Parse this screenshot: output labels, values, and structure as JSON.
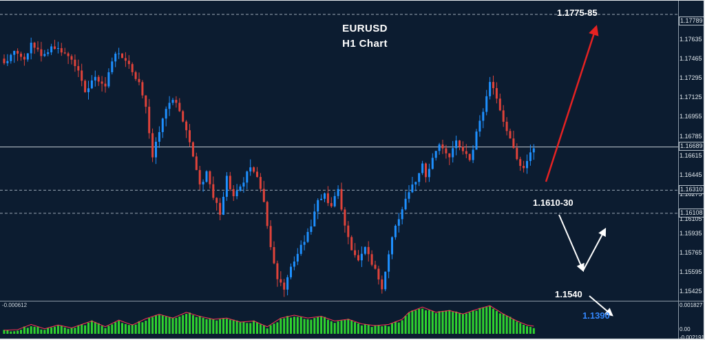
{
  "window": {
    "background": "#0c1c30",
    "frame_color": "#e8ecef",
    "separator_color": "#8c9aa6"
  },
  "chart": {
    "symbol": "EURUSD",
    "timeframe_label": "H1 Chart",
    "annotations": {
      "upper_zone": "1.1775-85",
      "mid_zone": "1.1610-30",
      "support": "1.1540",
      "target_down": "1.1390"
    }
  },
  "chart_data": {
    "type": "candlestick",
    "symbol": "EURUSD",
    "timeframe": "H1",
    "colors": {
      "up": "#1e90ff",
      "down": "#e0433a",
      "histogram": "#2fd32f",
      "signal_line": "#ff3355",
      "level_line": "#9aa8b5",
      "current_price_line": "#c4cdd4",
      "arrow_trend": "#e62222",
      "arrow_path": "#ffffff",
      "target_text": "#3388ff"
    },
    "price_axis": {
      "ticks": [
        "1.17635",
        "1.17465",
        "1.17295",
        "1.17125",
        "1.16955",
        "1.16785",
        "1.16615",
        "1.16445",
        "1.16275",
        "1.16105",
        "1.15935",
        "1.15765",
        "1.15595",
        "1.15425"
      ],
      "boxed": [
        "1.17789",
        "1.16689",
        "1.16310",
        "1.16108"
      ]
    },
    "levels": {
      "dashed": [
        1.1785,
        1.1631,
        1.16108
      ],
      "current_price": 1.16689
    },
    "candles": {
      "count": 158,
      "close_path": [
        [
          0,
          1.1742
        ],
        [
          3,
          1.1752
        ],
        [
          6,
          1.1745
        ],
        [
          8,
          1.176
        ],
        [
          11,
          1.1748
        ],
        [
          14,
          1.1757
        ],
        [
          18,
          1.1752
        ],
        [
          22,
          1.1738
        ],
        [
          24,
          1.1718
        ],
        [
          27,
          1.173
        ],
        [
          30,
          1.1722
        ],
        [
          33,
          1.1752
        ],
        [
          37,
          1.1742
        ],
        [
          40,
          1.1725
        ],
        [
          42,
          1.1702
        ],
        [
          44,
          1.1662
        ],
        [
          46,
          1.1682
        ],
        [
          48,
          1.1702
        ],
        [
          50,
          1.1712
        ],
        [
          52,
          1.17
        ],
        [
          54,
          1.1686
        ],
        [
          56,
          1.1662
        ],
        [
          58,
          1.1634
        ],
        [
          60,
          1.1646
        ],
        [
          62,
          1.1626
        ],
        [
          64,
          1.161
        ],
        [
          66,
          1.1642
        ],
        [
          68,
          1.1626
        ],
        [
          71,
          1.164
        ],
        [
          73,
          1.1652
        ],
        [
          75,
          1.1645
        ],
        [
          77,
          1.162
        ],
        [
          79,
          1.158
        ],
        [
          81,
          1.1552
        ],
        [
          83,
          1.1545
        ],
        [
          86,
          1.157
        ],
        [
          89,
          1.1586
        ],
        [
          91,
          1.16
        ],
        [
          93,
          1.162
        ],
        [
          95,
          1.1628
        ],
        [
          97,
          1.1616
        ],
        [
          99,
          1.1632
        ],
        [
          101,
          1.16
        ],
        [
          103,
          1.1576
        ],
        [
          105,
          1.157
        ],
        [
          107,
          1.1581
        ],
        [
          110,
          1.156
        ],
        [
          112,
          1.1543
        ],
        [
          114,
          1.1576
        ],
        [
          116,
          1.16
        ],
        [
          118,
          1.1613
        ],
        [
          120,
          1.1631
        ],
        [
          122,
          1.1638
        ],
        [
          124,
          1.1656
        ],
        [
          125,
          1.1642
        ],
        [
          127,
          1.1661
        ],
        [
          129,
          1.1669
        ],
        [
          132,
          1.1661
        ],
        [
          134,
          1.1676
        ],
        [
          136,
          1.1666
        ],
        [
          138,
          1.1656
        ],
        [
          140,
          1.1681
        ],
        [
          142,
          1.1701
        ],
        [
          144,
          1.1726
        ],
        [
          146,
          1.1711
        ],
        [
          148,
          1.1691
        ],
        [
          150,
          1.1676
        ],
        [
          152,
          1.1656
        ],
        [
          154,
          1.1649
        ],
        [
          156,
          1.1666
        ],
        [
          157,
          1.1669
        ]
      ]
    },
    "indicator": {
      "value_label": "-0.000612",
      "scale_labels": [
        "0.001827",
        "0.00",
        "-0.002191"
      ],
      "histogram_path": [
        [
          0,
          0.1
        ],
        [
          4,
          0.12
        ],
        [
          8,
          0.3
        ],
        [
          12,
          0.15
        ],
        [
          16,
          0.28
        ],
        [
          20,
          0.18
        ],
        [
          26,
          0.42
        ],
        [
          30,
          0.22
        ],
        [
          34,
          0.45
        ],
        [
          38,
          0.28
        ],
        [
          42,
          0.5
        ],
        [
          46,
          0.65
        ],
        [
          50,
          0.52
        ],
        [
          54,
          0.72
        ],
        [
          58,
          0.58
        ],
        [
          62,
          0.48
        ],
        [
          66,
          0.52
        ],
        [
          70,
          0.38
        ],
        [
          74,
          0.42
        ],
        [
          78,
          0.22
        ],
        [
          82,
          0.52
        ],
        [
          86,
          0.62
        ],
        [
          90,
          0.52
        ],
        [
          94,
          0.58
        ],
        [
          98,
          0.42
        ],
        [
          102,
          0.48
        ],
        [
          106,
          0.32
        ],
        [
          110,
          0.26
        ],
        [
          114,
          0.3
        ],
        [
          118,
          0.48
        ],
        [
          120,
          0.72
        ],
        [
          124,
          0.9
        ],
        [
          128,
          0.72
        ],
        [
          132,
          0.78
        ],
        [
          136,
          0.66
        ],
        [
          140,
          0.82
        ],
        [
          144,
          0.95
        ],
        [
          148,
          0.66
        ],
        [
          152,
          0.42
        ],
        [
          155,
          0.28
        ],
        [
          157,
          0.24
        ]
      ]
    },
    "arrows": [
      {
        "color": "#e62222",
        "width": 2.5,
        "points": [
          [
            793,
            263
          ],
          [
            866,
            38
          ]
        ]
      },
      {
        "color": "#ffffff",
        "width": 2,
        "points": [
          [
            812,
            311
          ],
          [
            847,
            392
          ]
        ]
      },
      {
        "color": "#ffffff",
        "width": 2,
        "points": [
          [
            847,
            392
          ],
          [
            879,
            332
          ]
        ]
      },
      {
        "color": "#ffffff",
        "width": 2,
        "points": [
          [
            856,
            429
          ],
          [
            889,
            457
          ]
        ]
      }
    ]
  }
}
